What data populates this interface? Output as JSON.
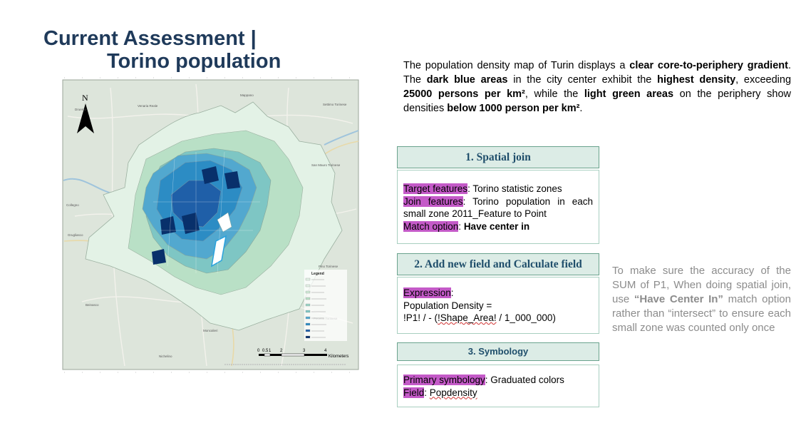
{
  "title": {
    "line1": "Current Assessment |",
    "line2": "Torino population"
  },
  "intro": {
    "s1": "The population density map of Turin displays a ",
    "b1": "clear core-to-periphery gradient",
    "s2": ". The ",
    "b2": "dark blue areas",
    "s3": " in the city center exhibit the ",
    "b3": "highest density",
    "s4": ", exceeding ",
    "b4": "25000 persons per km²",
    "s5": ", while the ",
    "b5": "light green areas",
    "s6": " on the periphery show densities ",
    "b6": "below 1000 person per km²",
    "s7": "."
  },
  "steps": {
    "step1": {
      "header": "1. Spatial join",
      "target_label": "Target features",
      "target_value": ": Torino statistic zones",
      "join_label": "Join features",
      "join_value": ": Torino population in each small zone 2011_Feature to Point",
      "match_label": "Match option",
      "match_sep": ": ",
      "match_value": "Have center in"
    },
    "step2": {
      "header": "2. Add new field and Calculate field",
      "expr_label": "Expression",
      "expr_sep": ":",
      "line2": "Population Density =",
      "line3a": "!P1! /  - (",
      "line3b": "!Shape_Area!",
      "line3c": " / 1_000_000)"
    },
    "step3": {
      "header": "3. Symbology",
      "primary_label": "Primary symbology",
      "primary_value": ": Graduated colors",
      "field_label": "Field",
      "field_sep": ": ",
      "field_value": "Popdensity"
    }
  },
  "note": {
    "p1": "To make sure the accuracy of the SUM of P1, When doing spatial join, use ",
    "bold": "“Have Center In”",
    "p2": " match option rather than “intersect” to ensure each small zone was counted only once"
  },
  "map": {
    "north": "N",
    "places": [
      "Druento",
      "Venaria Reale",
      "Mappano",
      "Settimo Torinese",
      "San Mauro Torinese",
      "Collegno",
      "Grugliasco",
      "Pino Torinese",
      "Beinasco",
      "Pecetto Torinese",
      "Moncalieri",
      "Nichelino"
    ],
    "legend_title": "Legend",
    "scale_ticks": [
      "0",
      "0.5",
      "1",
      "2",
      "3",
      "4"
    ],
    "scale_unit": "Kilometers",
    "colors": {
      "darkest": "#08306b",
      "dark": "#1f5fa8",
      "mid": "#2c8cc4",
      "light_blue": "#52a8cf",
      "teal": "#7ec6c4",
      "light_green": "#b9e0c6",
      "palest": "#e3f2e6",
      "base": "#dfe7de"
    }
  }
}
